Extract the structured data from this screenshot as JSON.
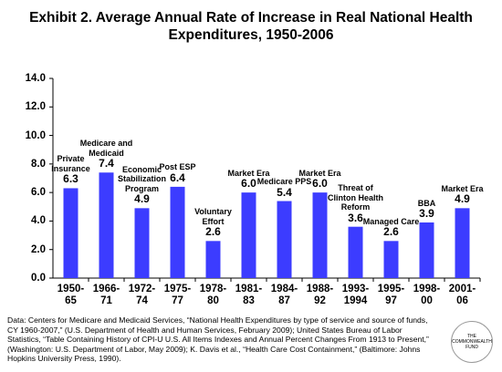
{
  "chart_data": {
    "type": "bar",
    "title": "Exhibit 2. Average Annual Rate of Increase in Real National Health Expenditures, 1950-2006",
    "categories": [
      "1950-65",
      "1966-71",
      "1972-74",
      "1975-77",
      "1978-80",
      "1981-83",
      "1984-87",
      "1988-92",
      "1993-1994",
      "1995-97",
      "1998-00",
      "2001-06"
    ],
    "values": [
      6.3,
      7.4,
      4.9,
      6.4,
      2.6,
      6.0,
      5.4,
      6.0,
      3.6,
      2.6,
      3.9,
      4.9
    ],
    "value_labels": [
      "6.3",
      "7.4",
      "4.9",
      "6.4",
      "2.6",
      "6.0",
      "5.4",
      "6.0",
      "3.6",
      "2.6",
      "3.9",
      "4.9"
    ],
    "annotations": [
      "Private Insurance",
      "Medicare and Medicaid",
      "Economic Stabilization Program",
      "Post ESP",
      "Voluntary Effort",
      "Market Era",
      "Medicare PPS",
      "Market Era",
      "Threat of Clinton Health Reform",
      "Managed Care",
      "BBA",
      "Market Era"
    ],
    "color": "#3c3cff",
    "ylim": [
      0,
      14
    ],
    "yticks": [
      {
        "value": 0,
        "label": "0.0"
      },
      {
        "value": 2,
        "label": "2.0"
      },
      {
        "value": 4,
        "label": "4.0"
      },
      {
        "value": 6,
        "label": "6.0"
      },
      {
        "value": 8,
        "label": "8.0"
      },
      {
        "value": 10,
        "label": "10.0"
      },
      {
        "value": 12,
        "label": "12.0"
      },
      {
        "value": 14,
        "label": "14.0"
      }
    ],
    "grid": false,
    "source": "Data: Centers for Medicare and Medicaid Services, “National Health Expenditures by type of service and source of funds, CY 1960-2007,” (U.S. Department of Health and Human Services, February 2009); United States Bureau of Labor Statistics, “Table Containing History of CPI-U U.S. All Items Indexes and Annual Percent Changes From 1913 to Present,” (Washington: U.S. Department of Labor, May 2009); K. Davis et al., “Health Care Cost Containment,” (Baltimore: Johns Hopkins University Press, 1990)."
  },
  "logo": "THE COMMONWEALTH FUND"
}
